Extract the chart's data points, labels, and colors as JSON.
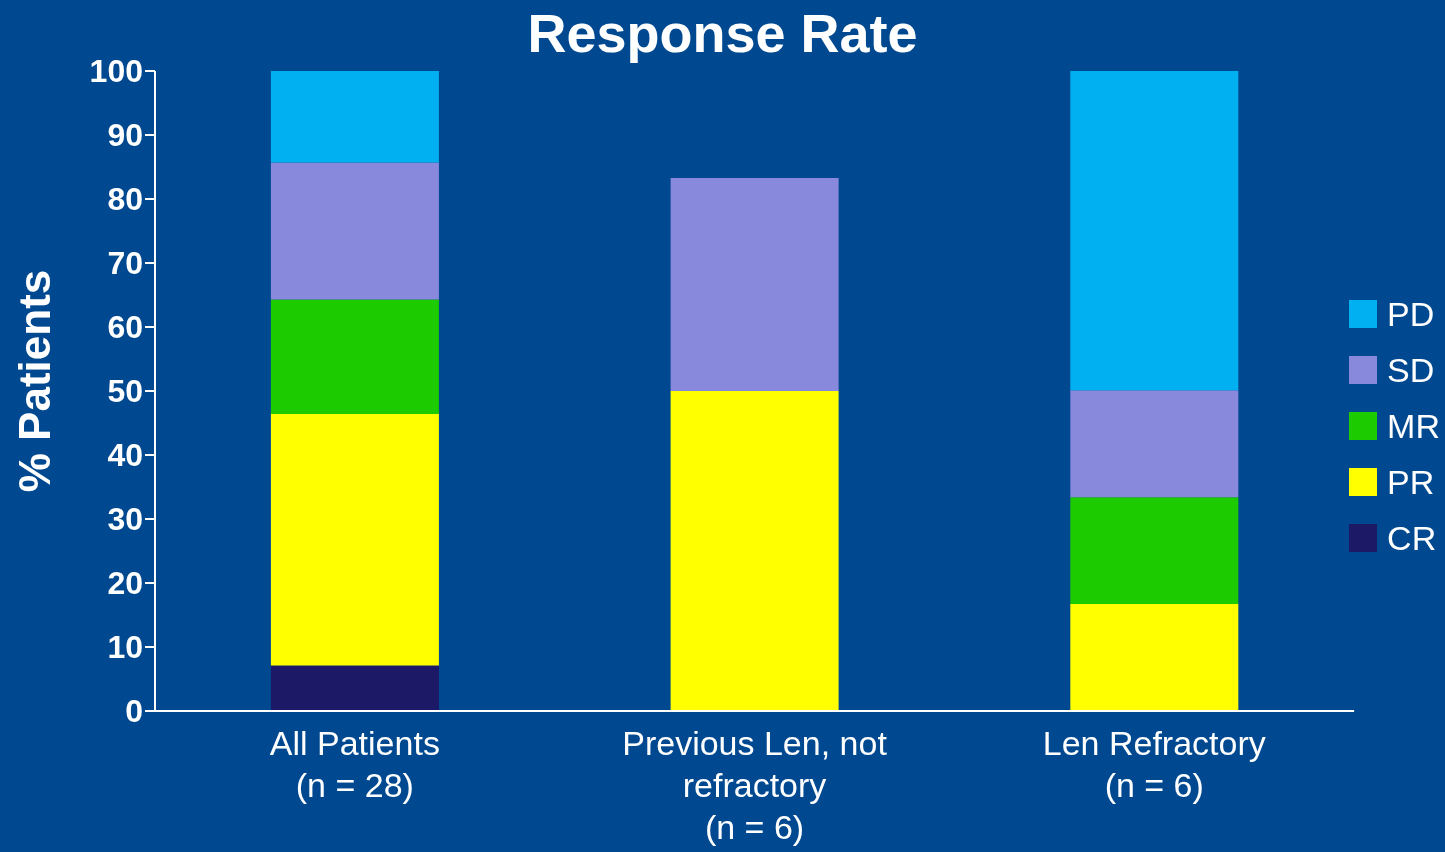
{
  "chart_data": {
    "type": "bar",
    "title": "Response Rate",
    "ylabel": "% Patients",
    "stacked": true,
    "categories": [
      "All Patients\n(n = 28)",
      "Previous Len, not\nrefractory\n(n = 6)",
      "Len Refractory\n(n = 6)"
    ],
    "series": [
      {
        "name": "CR",
        "color": "#1c1a66",
        "values": [
          7.1,
          null,
          null
        ]
      },
      {
        "name": "PR",
        "color": "#ffff00",
        "values": [
          39.3,
          50,
          16.7
        ]
      },
      {
        "name": "MR",
        "color": "#1ccc00",
        "values": [
          17.9,
          null,
          16.7
        ]
      },
      {
        "name": "SD",
        "color": "#8888dd",
        "values": [
          21.4,
          33.3,
          16.7
        ]
      },
      {
        "name": "PD",
        "color": "#00b0f0",
        "values": [
          14.3,
          null,
          50
        ]
      }
    ],
    "ylim": [
      0,
      100
    ],
    "yticks": [
      0,
      10,
      20,
      30,
      40,
      50,
      60,
      70,
      80,
      90,
      100
    ],
    "legend": "right",
    "grid": false
  }
}
